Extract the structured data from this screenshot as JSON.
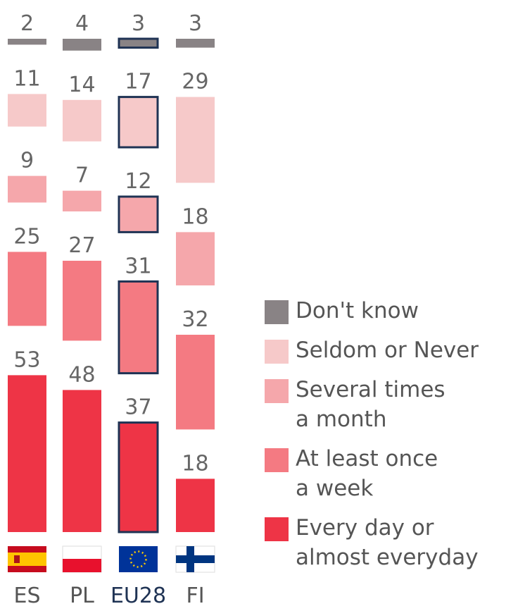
{
  "chart_data": {
    "type": "separated_stacked_bar",
    "categories": [
      "ES",
      "PL",
      "EU28",
      "FI"
    ],
    "highlight": "EU28",
    "series": [
      {
        "name": "Every day or\nalmost everyday",
        "color": "#ee3446",
        "values": [
          53,
          48,
          37,
          18
        ]
      },
      {
        "name": "At least once\na week",
        "color": "#f47a82",
        "values": [
          25,
          27,
          31,
          32
        ]
      },
      {
        "name": "Several times\na month",
        "color": "#f5a7ab",
        "values": [
          9,
          7,
          12,
          18
        ]
      },
      {
        "name": "Seldom or Never",
        "color": "#f6c9c9",
        "values": [
          11,
          14,
          17,
          29
        ]
      },
      {
        "name": "Don't know",
        "color": "#898385",
        "values": [
          2,
          4,
          3,
          3
        ]
      }
    ]
  }
}
